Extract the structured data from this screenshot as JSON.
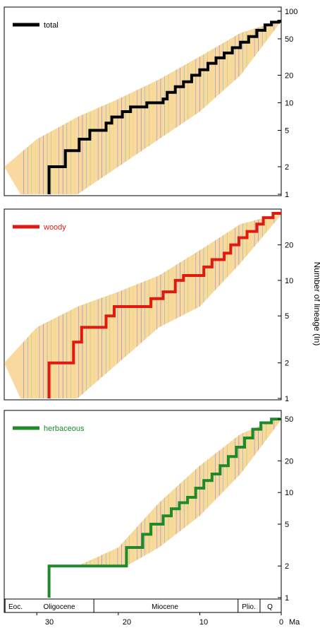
{
  "colors": {
    "uncertainty_band": "#f9d9a0",
    "total": "#000000",
    "woody": "#e01a10",
    "herbaceous": "#1f8a2a"
  },
  "y_axis_label": "Number of lineage (ln)",
  "x_axis": {
    "ticks": [
      30,
      20,
      10,
      0
    ],
    "tick_labels": [
      "30",
      "20",
      "10",
      "0"
    ],
    "unit_label": "Ma",
    "range": [
      34,
      0
    ]
  },
  "epochs": [
    {
      "name": "Eoc.",
      "start": 34,
      "end": 33.9
    },
    {
      "name": "Oligocene",
      "start": 33.9,
      "end": 23.0
    },
    {
      "name": "Miocene",
      "start": 23.0,
      "end": 5.3
    },
    {
      "name": "Plio.",
      "start": 5.3,
      "end": 2.6
    },
    {
      "name": "Q",
      "start": 2.6,
      "end": 0
    }
  ],
  "chart_data": [
    {
      "type": "line",
      "log_y": true,
      "series": [
        {
          "name": "total",
          "color": "#000000",
          "points": [
            [
              28.5,
              1
            ],
            [
              28.5,
              2
            ],
            [
              26.5,
              2
            ],
            [
              26.5,
              3
            ],
            [
              24.8,
              3
            ],
            [
              24.8,
              4
            ],
            [
              23.5,
              4
            ],
            [
              23.5,
              5
            ],
            [
              21.5,
              5
            ],
            [
              21.5,
              6
            ],
            [
              20.8,
              6
            ],
            [
              20.8,
              7
            ],
            [
              19.5,
              7
            ],
            [
              19.5,
              8
            ],
            [
              18.5,
              8
            ],
            [
              18.5,
              9
            ],
            [
              16.5,
              9
            ],
            [
              16.5,
              10
            ],
            [
              14.5,
              10
            ],
            [
              14.5,
              11
            ],
            [
              14.0,
              11
            ],
            [
              14.0,
              13
            ],
            [
              13.0,
              13
            ],
            [
              13.0,
              15
            ],
            [
              12.0,
              15
            ],
            [
              12.0,
              17
            ],
            [
              11.0,
              17
            ],
            [
              11.0,
              20
            ],
            [
              10.0,
              20
            ],
            [
              10.0,
              23
            ],
            [
              9.0,
              23
            ],
            [
              9.0,
              27
            ],
            [
              8.0,
              27
            ],
            [
              8.0,
              31
            ],
            [
              7.0,
              31
            ],
            [
              7.0,
              35
            ],
            [
              6.0,
              35
            ],
            [
              6.0,
              40
            ],
            [
              5.0,
              40
            ],
            [
              5.0,
              46
            ],
            [
              4.0,
              46
            ],
            [
              4.0,
              53
            ],
            [
              3.0,
              53
            ],
            [
              3.0,
              62
            ],
            [
              2.0,
              62
            ],
            [
              2.0,
              71
            ],
            [
              1.2,
              71
            ],
            [
              1.2,
              76
            ],
            [
              0.3,
              76
            ],
            [
              0.3,
              78
            ],
            [
              0,
              78
            ]
          ]
        }
      ],
      "ylim": [
        1,
        100
      ],
      "y_ticks": [
        1,
        2,
        5,
        10,
        20,
        50,
        100
      ],
      "y_tick_labels": [
        "1",
        "2",
        "5",
        "10",
        "20",
        "50",
        "100"
      ],
      "band": {
        "low": [
          [
            32,
            1
          ],
          [
            25,
            1
          ],
          [
            20,
            2
          ],
          [
            15,
            4
          ],
          [
            10,
            8
          ],
          [
            5,
            20
          ],
          [
            0,
            78
          ]
        ],
        "high": [
          [
            34,
            2
          ],
          [
            30,
            4
          ],
          [
            25,
            7
          ],
          [
            20,
            11
          ],
          [
            15,
            18
          ],
          [
            10,
            32
          ],
          [
            5,
            58
          ],
          [
            0,
            80
          ]
        ]
      },
      "legend": "top-left"
    },
    {
      "type": "line",
      "log_y": true,
      "series": [
        {
          "name": "woody",
          "color": "#e01a10",
          "points": [
            [
              28.5,
              1
            ],
            [
              28.5,
              2
            ],
            [
              25.5,
              2
            ],
            [
              25.5,
              3
            ],
            [
              24.5,
              3
            ],
            [
              24.5,
              4
            ],
            [
              21.5,
              4
            ],
            [
              21.5,
              5
            ],
            [
              20.5,
              5
            ],
            [
              20.5,
              6
            ],
            [
              16.0,
              6
            ],
            [
              16.0,
              7
            ],
            [
              14.5,
              7
            ],
            [
              14.5,
              8
            ],
            [
              13.0,
              8
            ],
            [
              13.0,
              10
            ],
            [
              12.0,
              10
            ],
            [
              12.0,
              11
            ],
            [
              9.5,
              11
            ],
            [
              9.5,
              13
            ],
            [
              8.5,
              13
            ],
            [
              8.5,
              15
            ],
            [
              7.0,
              15
            ],
            [
              7.0,
              17
            ],
            [
              6.2,
              17
            ],
            [
              6.2,
              20
            ],
            [
              5.2,
              20
            ],
            [
              5.2,
              23
            ],
            [
              4.2,
              23
            ],
            [
              4.2,
              26
            ],
            [
              3.0,
              26
            ],
            [
              3.0,
              30
            ],
            [
              2.2,
              30
            ],
            [
              2.2,
              34
            ],
            [
              1.0,
              34
            ],
            [
              1.0,
              37
            ],
            [
              0,
              37
            ]
          ]
        }
      ],
      "ylim": [
        1,
        37
      ],
      "y_ticks": [
        1,
        2,
        5,
        10,
        20
      ],
      "y_tick_labels": [
        "1",
        "2",
        "5",
        "10",
        "20"
      ],
      "band": {
        "low": [
          [
            32,
            1
          ],
          [
            25,
            1
          ],
          [
            20,
            2
          ],
          [
            15,
            4
          ],
          [
            10,
            6
          ],
          [
            5,
            14
          ],
          [
            0,
            36
          ]
        ],
        "high": [
          [
            34,
            2
          ],
          [
            30,
            4
          ],
          [
            25,
            6
          ],
          [
            20,
            8
          ],
          [
            15,
            11
          ],
          [
            10,
            18
          ],
          [
            5,
            30
          ],
          [
            0,
            37
          ]
        ]
      },
      "legend": "top-left"
    },
    {
      "type": "line",
      "log_y": true,
      "series": [
        {
          "name": "herbaceous",
          "color": "#1f8a2a",
          "points": [
            [
              28.5,
              1
            ],
            [
              28.5,
              2
            ],
            [
              19.0,
              2
            ],
            [
              19.0,
              3
            ],
            [
              17.0,
              3
            ],
            [
              17.0,
              4
            ],
            [
              16.0,
              4
            ],
            [
              16.0,
              5
            ],
            [
              14.5,
              5
            ],
            [
              14.5,
              6
            ],
            [
              13.5,
              6
            ],
            [
              13.5,
              7
            ],
            [
              12.5,
              7
            ],
            [
              12.5,
              8
            ],
            [
              11.5,
              8
            ],
            [
              11.5,
              9
            ],
            [
              10.5,
              9
            ],
            [
              10.5,
              11
            ],
            [
              9.5,
              11
            ],
            [
              9.5,
              13
            ],
            [
              8.5,
              13
            ],
            [
              8.5,
              15
            ],
            [
              7.5,
              15
            ],
            [
              7.5,
              18
            ],
            [
              6.5,
              18
            ],
            [
              6.5,
              22
            ],
            [
              5.5,
              22
            ],
            [
              5.5,
              27
            ],
            [
              4.5,
              27
            ],
            [
              4.5,
              33
            ],
            [
              3.5,
              33
            ],
            [
              3.5,
              40
            ],
            [
              2.5,
              40
            ],
            [
              2.5,
              46
            ],
            [
              1.2,
              46
            ],
            [
              1.2,
              50
            ],
            [
              0,
              50
            ]
          ]
        }
      ],
      "ylim": [
        1,
        55
      ],
      "y_ticks": [
        1,
        2,
        5,
        10,
        20,
        50
      ],
      "y_tick_labels": [
        "1",
        "2",
        "5",
        "10",
        "20",
        "50"
      ],
      "band": {
        "low": [
          [
            34,
            2
          ],
          [
            25,
            2
          ],
          [
            19,
            2
          ],
          [
            15,
            3
          ],
          [
            10,
            6
          ],
          [
            5,
            15
          ],
          [
            0,
            49
          ]
        ],
        "high": [
          [
            34,
            2
          ],
          [
            25,
            2
          ],
          [
            20,
            3
          ],
          [
            15,
            8
          ],
          [
            10,
            18
          ],
          [
            5,
            36
          ],
          [
            0,
            52
          ]
        ]
      },
      "legend": "top-left"
    }
  ]
}
